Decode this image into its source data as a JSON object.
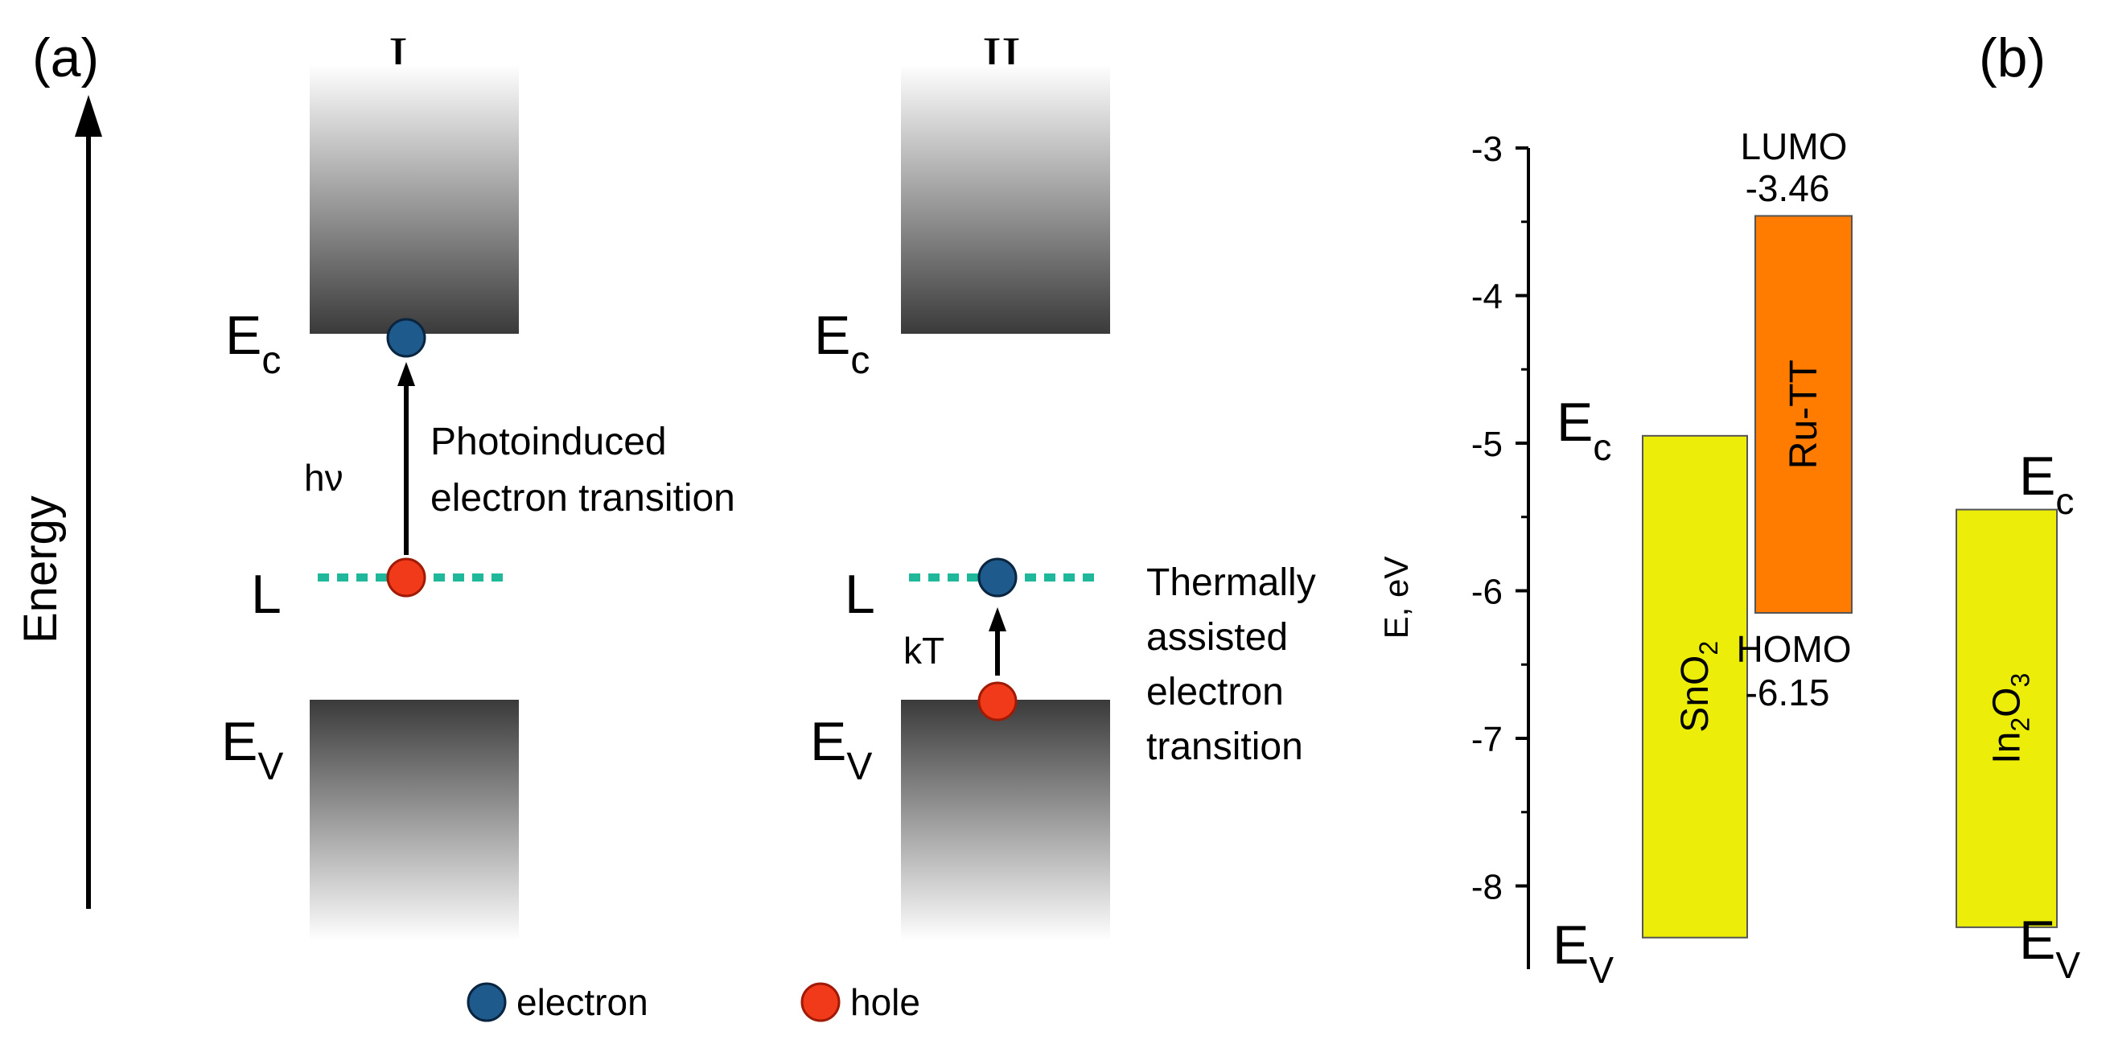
{
  "panel_a": {
    "panel_label": "(a)",
    "energy_axis_label": "Energy",
    "mechanism_I": {
      "label": "I",
      "ec": "E",
      "ec_sub": "c",
      "ev": "E",
      "ev_sub": "V",
      "level": "L",
      "photon": "hν",
      "desc_line1": "Photoinduced",
      "desc_line2": "electron transition"
    },
    "mechanism_II": {
      "label": "II",
      "ec": "E",
      "ec_sub": "c",
      "ev": "E",
      "ev_sub": "V",
      "level": "L",
      "thermal": "kT",
      "desc_line1": "Thermally",
      "desc_line2": "assisted",
      "desc_line3": "electron",
      "desc_line4": "transition"
    },
    "legend": {
      "electron": "electron",
      "hole": "hole"
    },
    "colors": {
      "electron": "#1f5a8c",
      "hole": "#f03a1a",
      "level": "#1fb89a"
    }
  },
  "panel_b": {
    "panel_label": "(b)",
    "chart_data": {
      "type": "energy-level-diagram",
      "ylabel": "E, eV",
      "ylim": [
        -8.5,
        -3
      ],
      "ticks": [
        "-3",
        "-4",
        "-5",
        "-6",
        "-7",
        "-8"
      ],
      "tick_values": [
        -3,
        -4,
        -5,
        -6,
        -7,
        -8
      ],
      "bars": [
        {
          "name": "SnO",
          "sub": "2",
          "top": -4.95,
          "bottom": -8.35,
          "color": "#ecee0a"
        },
        {
          "name": "Ru-TT",
          "sub": "",
          "top": -3.46,
          "bottom": -6.15,
          "color": "#ff7c00"
        },
        {
          "name": "In",
          "sub": "2",
          "name2": "O",
          "sub2": "3",
          "top": -5.45,
          "bottom": -8.28,
          "color": "#ecee0a"
        }
      ],
      "annotations": {
        "lumo": "LUMO",
        "lumo_value": "-3.46",
        "homo": "HOMO",
        "homo_value": "-6.15",
        "snO2_ec": "E",
        "snO2_ec_sub": "c",
        "snO2_ev": "E",
        "snO2_ev_sub": "V",
        "in2o3_ec": "E",
        "in2o3_ec_sub": "c",
        "in2o3_ev": "E",
        "in2o3_ev_sub": "V"
      }
    }
  }
}
